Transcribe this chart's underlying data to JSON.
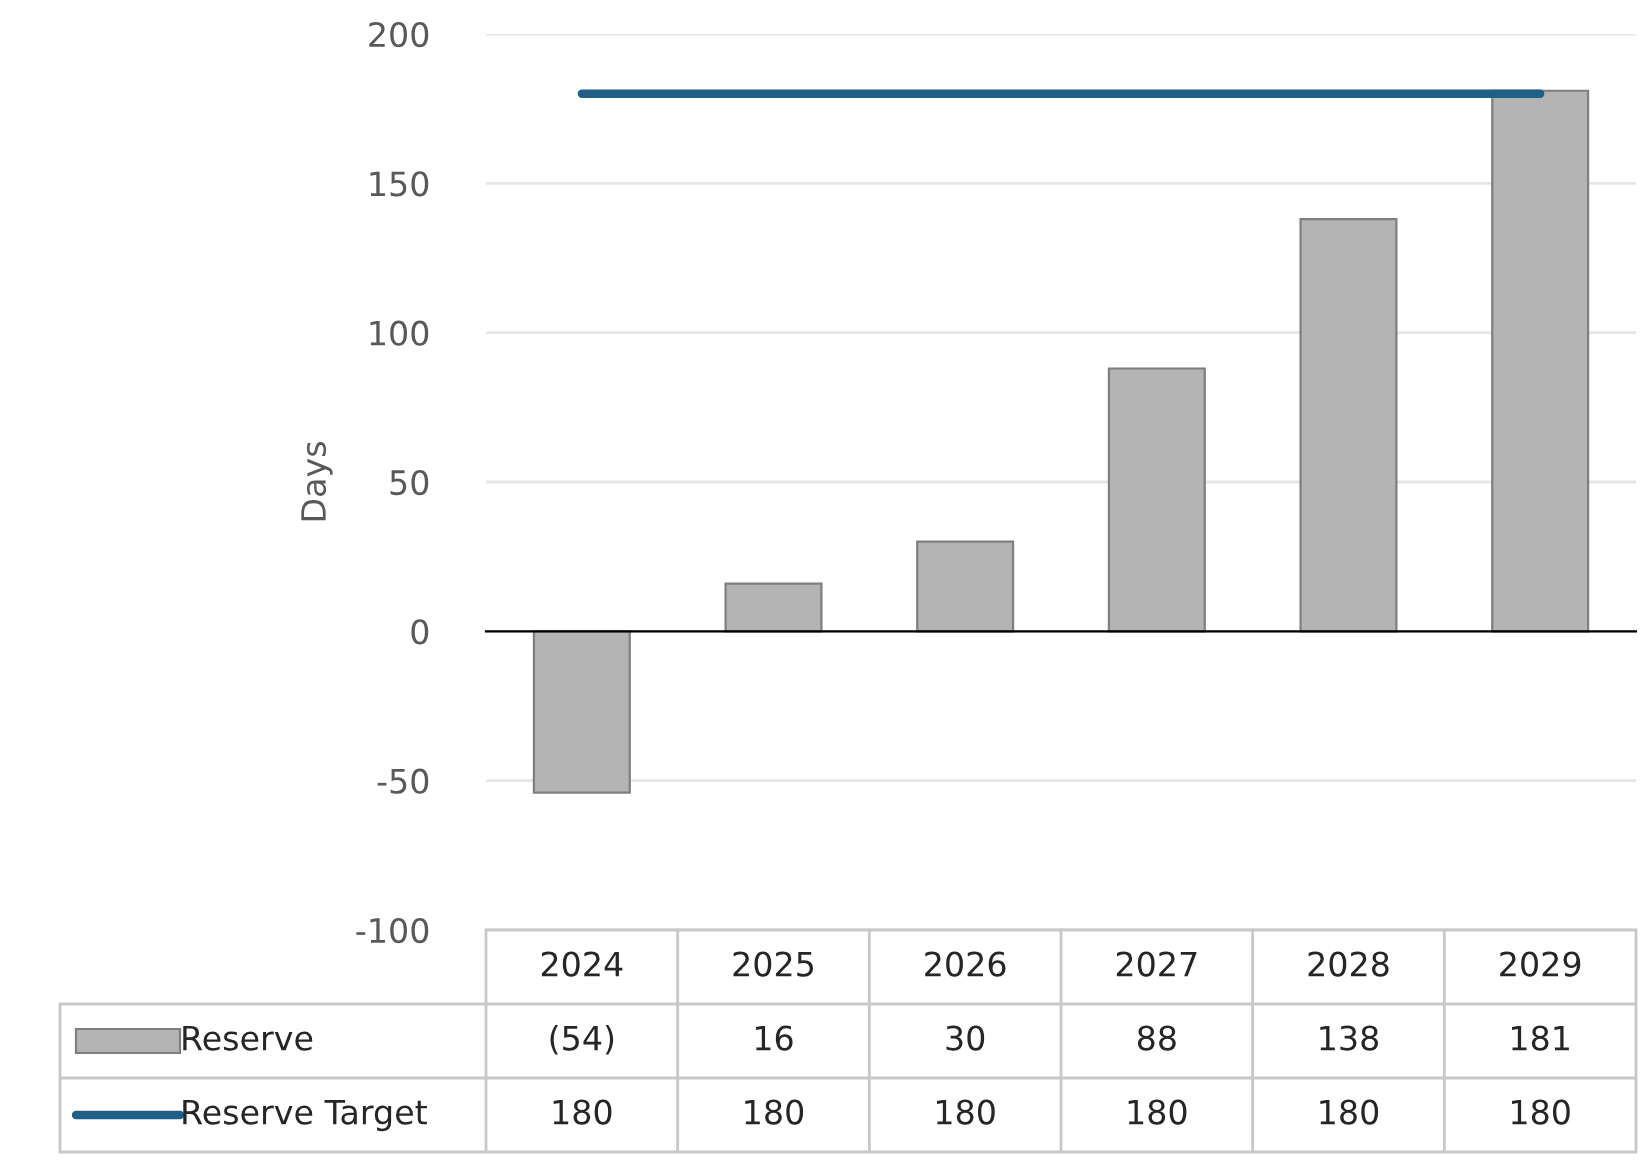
{
  "chart_data": {
    "type": "bar",
    "ylabel": "Days",
    "categories": [
      "2024",
      "2025",
      "2026",
      "2027",
      "2028",
      "2029"
    ],
    "series": [
      {
        "name": "Reserve",
        "color": "#b4b4b4",
        "values": [
          -54,
          16,
          30,
          88,
          138,
          181
        ],
        "value_labels": [
          "(54)",
          "16",
          "30",
          "88",
          "138",
          "181"
        ]
      },
      {
        "name": "Reserve Target",
        "type": "line",
        "color": "#215f86",
        "values": [
          180,
          180,
          180,
          180,
          180,
          180
        ],
        "value_labels": [
          "180",
          "180",
          "180",
          "180",
          "180",
          "180"
        ]
      }
    ],
    "ylim": [
      -100,
      200
    ],
    "yticks": [
      -100,
      -50,
      0,
      50,
      100,
      150,
      200
    ],
    "grid": "y",
    "legend": "bottom"
  }
}
